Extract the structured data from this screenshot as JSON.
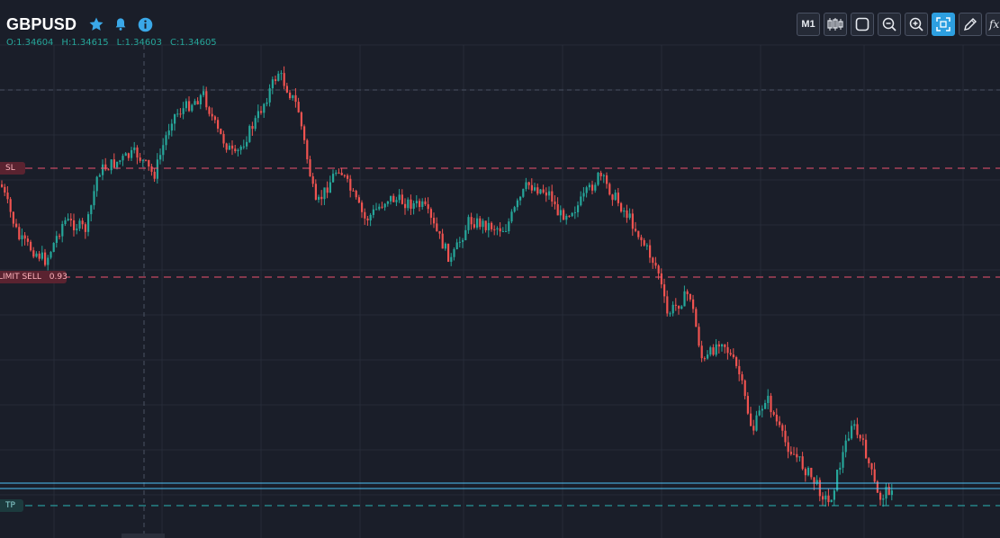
{
  "header": {
    "symbol": "GBPUSD",
    "icons": [
      "star-icon",
      "bell-icon",
      "info-icon"
    ]
  },
  "ohlc": {
    "open": "O:1.34604",
    "high": "H:1.34615",
    "low": "L:1.34603",
    "close": "C:1.34605"
  },
  "toolbar": {
    "timeframe_label": "M1",
    "buttons": [
      "candles-icon",
      "square-icon",
      "zoom-out-icon",
      "zoom-in-icon",
      "fit-screen-icon",
      "pencil-icon",
      "fx-icon"
    ],
    "fx_label": "fx"
  },
  "orders": {
    "sl_label": "SL",
    "limit_sell_label": "LIMIT SELL",
    "limit_sell_volume": "0.93",
    "tp_label": "TP"
  },
  "colors": {
    "background": "#1a1e29",
    "grid": "#262b38",
    "bull": "#26a69a",
    "bear": "#ef5350",
    "sl_line": "#ef5370",
    "tp_line": "#2bb5b5",
    "price_line": "#4fc3f7",
    "accent": "#2d9fe0"
  }
}
